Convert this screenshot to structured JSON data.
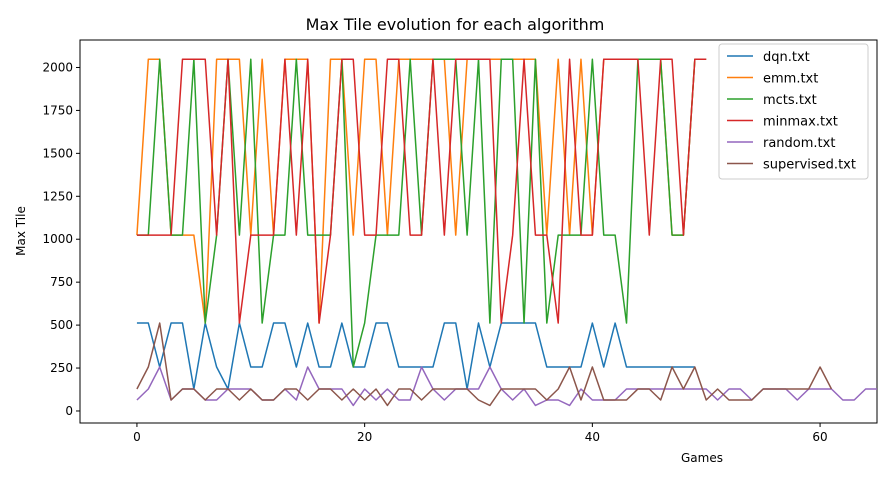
{
  "chart_data": {
    "type": "line",
    "title": "Max Tile evolution for each algorithm",
    "xlabel": "Games",
    "ylabel": "Max Tile",
    "xlim": [
      -5,
      65
    ],
    "ylim": [
      -70,
      2160
    ],
    "xticks": [
      0,
      20,
      40,
      60
    ],
    "yticks": [
      0,
      250,
      500,
      750,
      1000,
      1250,
      1500,
      1750,
      2000
    ],
    "grid": false,
    "legend_position": "top-right",
    "series": [
      {
        "name": "dqn.txt",
        "color": "#1f77b4",
        "values": [
          512,
          512,
          256,
          512,
          512,
          128,
          512,
          256,
          128,
          512,
          256,
          256,
          512,
          512,
          256,
          512,
          256,
          256,
          512,
          256,
          256,
          512,
          512,
          256,
          256,
          256,
          256,
          512,
          512,
          128,
          512,
          256,
          512,
          512,
          512,
          512,
          256,
          256,
          256,
          256,
          512,
          256,
          512,
          256,
          256,
          256,
          256,
          256,
          256,
          256
        ]
      },
      {
        "name": "emm.txt",
        "color": "#ff7f0e",
        "values": [
          1024,
          2048,
          2048,
          1024,
          1024,
          1024,
          512,
          2048,
          2048,
          2048,
          1024,
          2048,
          1024,
          2048,
          2048,
          2048,
          512,
          2048,
          2048,
          1024,
          2048,
          2048,
          1024,
          2048,
          2048,
          2048,
          2048,
          2048,
          1024,
          2048,
          2048,
          2048,
          2048,
          2048,
          2048,
          2048,
          1024,
          2048,
          1024,
          2048,
          1024,
          2048,
          2048,
          2048,
          2048,
          2048,
          2048,
          1024,
          1024,
          2048
        ]
      },
      {
        "name": "mcts.txt",
        "color": "#2ca02c",
        "values": [
          1024,
          1024,
          2048,
          1024,
          1024,
          2048,
          512,
          1024,
          2048,
          1024,
          2048,
          512,
          1024,
          1024,
          2048,
          1024,
          1024,
          1024,
          2048,
          256,
          512,
          1024,
          1024,
          1024,
          2048,
          1024,
          2048,
          2048,
          2048,
          1024,
          2048,
          512,
          2048,
          2048,
          512,
          2048,
          512,
          1024,
          1024,
          1024,
          2048,
          1024,
          1024,
          512,
          2048,
          2048,
          2048,
          1024,
          1024,
          2048,
          2048
        ]
      },
      {
        "name": "minmax.txt",
        "color": "#d62728",
        "values": [
          1024,
          1024,
          1024,
          1024,
          2048,
          2048,
          2048,
          1024,
          2048,
          512,
          1024,
          1024,
          1024,
          2048,
          1024,
          2048,
          512,
          1024,
          2048,
          2048,
          1024,
          1024,
          2048,
          2048,
          1024,
          1024,
          2048,
          1024,
          2048,
          2048,
          2048,
          2048,
          512,
          1024,
          2048,
          1024,
          1024,
          512,
          2048,
          1024,
          1024,
          2048,
          2048,
          2048,
          2048,
          1024,
          2048,
          2048,
          1024,
          2048,
          2048
        ]
      },
      {
        "name": "random.txt",
        "color": "#9467bd",
        "values": [
          64,
          128,
          256,
          64,
          128,
          128,
          64,
          64,
          128,
          128,
          128,
          64,
          64,
          128,
          64,
          256,
          128,
          128,
          128,
          32,
          128,
          64,
          128,
          64,
          64,
          256,
          128,
          64,
          128,
          128,
          128,
          256,
          128,
          64,
          128,
          32,
          64,
          64,
          32,
          128,
          64,
          64,
          64,
          128,
          128,
          128,
          128,
          128,
          128,
          128,
          128,
          64,
          128,
          128,
          64,
          128,
          128,
          128,
          64,
          128,
          128,
          128,
          64,
          64,
          128,
          128
        ]
      },
      {
        "name": "supervised.txt",
        "color": "#8c564b",
        "values": [
          128,
          256,
          512,
          64,
          128,
          128,
          64,
          128,
          128,
          64,
          128,
          64,
          64,
          128,
          128,
          64,
          128,
          128,
          64,
          128,
          64,
          128,
          32,
          128,
          128,
          64,
          128,
          128,
          128,
          128,
          64,
          32,
          128,
          128,
          128,
          128,
          64,
          128,
          256,
          64,
          256,
          64,
          64,
          64,
          128,
          128,
          64,
          256,
          128,
          256,
          64,
          128,
          64,
          64,
          64,
          128,
          128,
          128,
          128,
          128,
          256,
          128
        ]
      }
    ]
  }
}
